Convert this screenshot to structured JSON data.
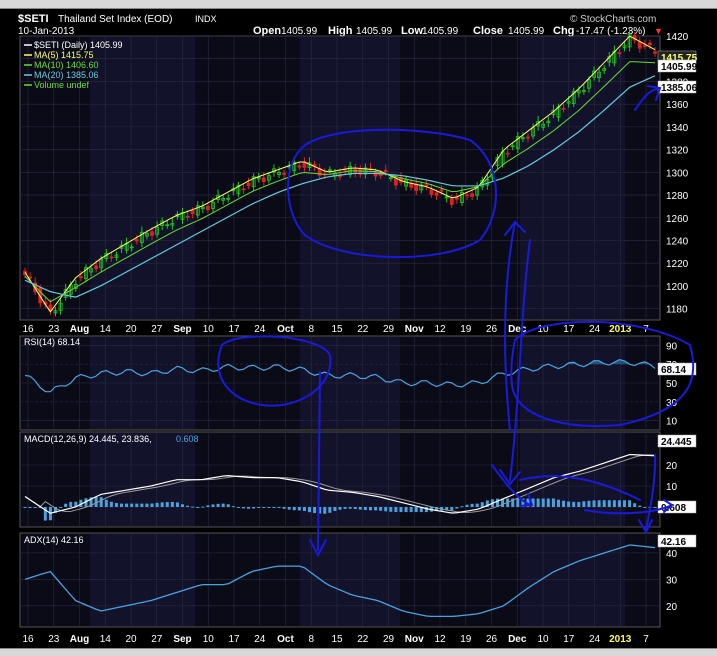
{
  "header": {
    "symbol": "$SETI",
    "name": "Thailand Set Index (EOD)",
    "exchange": "INDX",
    "date": "10-Jan-2013",
    "copyright": "© StockCharts.com",
    "open_label": "Open",
    "open": "1405.99",
    "high_label": "High",
    "high": "1405.99",
    "low_label": "Low",
    "low": "1405.99",
    "close_label": "Close",
    "close": "1405.99",
    "chg_label": "Chg",
    "chg": "-17.47 (-1.23%)",
    "chg_arrow": "▼"
  },
  "legend": {
    "price": "$SETI (Daily) 1405.99",
    "ma5": "MA(5) 1415.75",
    "ma10": "MA(10) 1406.60",
    "ma20": "MA(20) 1385.06",
    "volume": "Volume undef"
  },
  "price_tags": {
    "ma5": "1415.75",
    "close": "1405.99",
    "ma20": "1385.06"
  },
  "rsi": {
    "label": "RSI(14) 68.14",
    "tag": "68.14",
    "ticks": [
      "90",
      "70",
      "50",
      "30",
      "10"
    ]
  },
  "macd": {
    "label": "MACD(12,26,9) 24.445, 23.836,",
    "hist_value": "0.608",
    "tag": "24.445",
    "tag2": "0.608",
    "ticks": [
      "20",
      "10",
      "0"
    ]
  },
  "adx": {
    "label": "ADX(14) 42.16",
    "tag": "42.16",
    "ticks": [
      "40",
      "30",
      "20"
    ]
  },
  "xaxis_labels": [
    "16",
    "23",
    "Aug",
    "14",
    "20",
    "27",
    "Sep",
    "10",
    "17",
    "24",
    "Oct",
    "8",
    "15",
    "22",
    "29",
    "Nov",
    "12",
    "19",
    "26",
    "Dec",
    "10",
    "17",
    "24",
    "2013",
    "7"
  ],
  "colors": {
    "background": "#000000",
    "panel": "#0b0b18",
    "shade": "#12122a",
    "grid": "#2a2a44",
    "up": "#1ec81e",
    "down": "#e02020",
    "ma5": "#ffff66",
    "ma10": "#66dd33",
    "ma20": "#66ccdd",
    "rsi": "#4aa3df",
    "macd": "#ffffff",
    "signal": "#999999",
    "hist": "#4aa3df",
    "adx": "#4aa3df",
    "annotation": "#1a1adc"
  },
  "chart_data": {
    "type": "line",
    "title": "$SETI Thailand Set Index (EOD) INDX",
    "x": [
      "Jul 16",
      "Jul 23",
      "Aug 1",
      "Aug 14",
      "Aug 20",
      "Aug 27",
      "Sep 3",
      "Sep 10",
      "Sep 17",
      "Sep 24",
      "Oct 1",
      "Oct 8",
      "Oct 15",
      "Oct 22",
      "Oct 29",
      "Nov 5",
      "Nov 12",
      "Nov 19",
      "Nov 26",
      "Dec 3",
      "Dec 10",
      "Dec 17",
      "Dec 24",
      "Jan 2",
      "Jan 7",
      "Jan 10"
    ],
    "series": [
      {
        "name": "$SETI (Daily)",
        "values": [
          1210,
          1175,
          1205,
          1222,
          1235,
          1248,
          1260,
          1268,
          1280,
          1292,
          1300,
          1308,
          1298,
          1302,
          1300,
          1290,
          1285,
          1275,
          1285,
          1318,
          1335,
          1352,
          1372,
          1395,
          1418,
          1406
        ]
      },
      {
        "name": "MA(20)",
        "values": [
          1205,
          1195,
          1190,
          1200,
          1212,
          1224,
          1236,
          1248,
          1260,
          1272,
          1282,
          1290,
          1296,
          1299,
          1299,
          1297,
          1293,
          1288,
          1288,
          1295,
          1306,
          1320,
          1336,
          1355,
          1375,
          1385
        ]
      },
      {
        "name": "RSI(14)",
        "values": [
          58,
          40,
          55,
          60,
          62,
          60,
          65,
          63,
          67,
          66,
          67,
          64,
          58,
          58,
          56,
          50,
          50,
          48,
          50,
          60,
          65,
          68,
          70,
          72,
          72,
          68
        ]
      },
      {
        "name": "MACD(12,26,9)",
        "values": [
          5,
          -3,
          0,
          6,
          8,
          10,
          13,
          13,
          15,
          14,
          14,
          12,
          8,
          7,
          5,
          2,
          -1,
          -3,
          -1,
          4,
          9,
          14,
          17,
          21,
          25,
          24.4
        ]
      },
      {
        "name": "ADX(14)",
        "values": [
          30,
          33,
          22,
          18,
          20,
          22,
          25,
          28,
          28,
          33,
          35,
          35,
          28,
          24,
          22,
          18,
          16,
          16,
          17,
          20,
          27,
          33,
          37,
          40,
          43,
          42
        ]
      }
    ],
    "ylim": [
      1170,
      1420
    ],
    "yticks": [
      "1180",
      "1200",
      "1220",
      "1240",
      "1260",
      "1280",
      "1300",
      "1320",
      "1340",
      "1360",
      "1380",
      "1400",
      "1420"
    ]
  }
}
